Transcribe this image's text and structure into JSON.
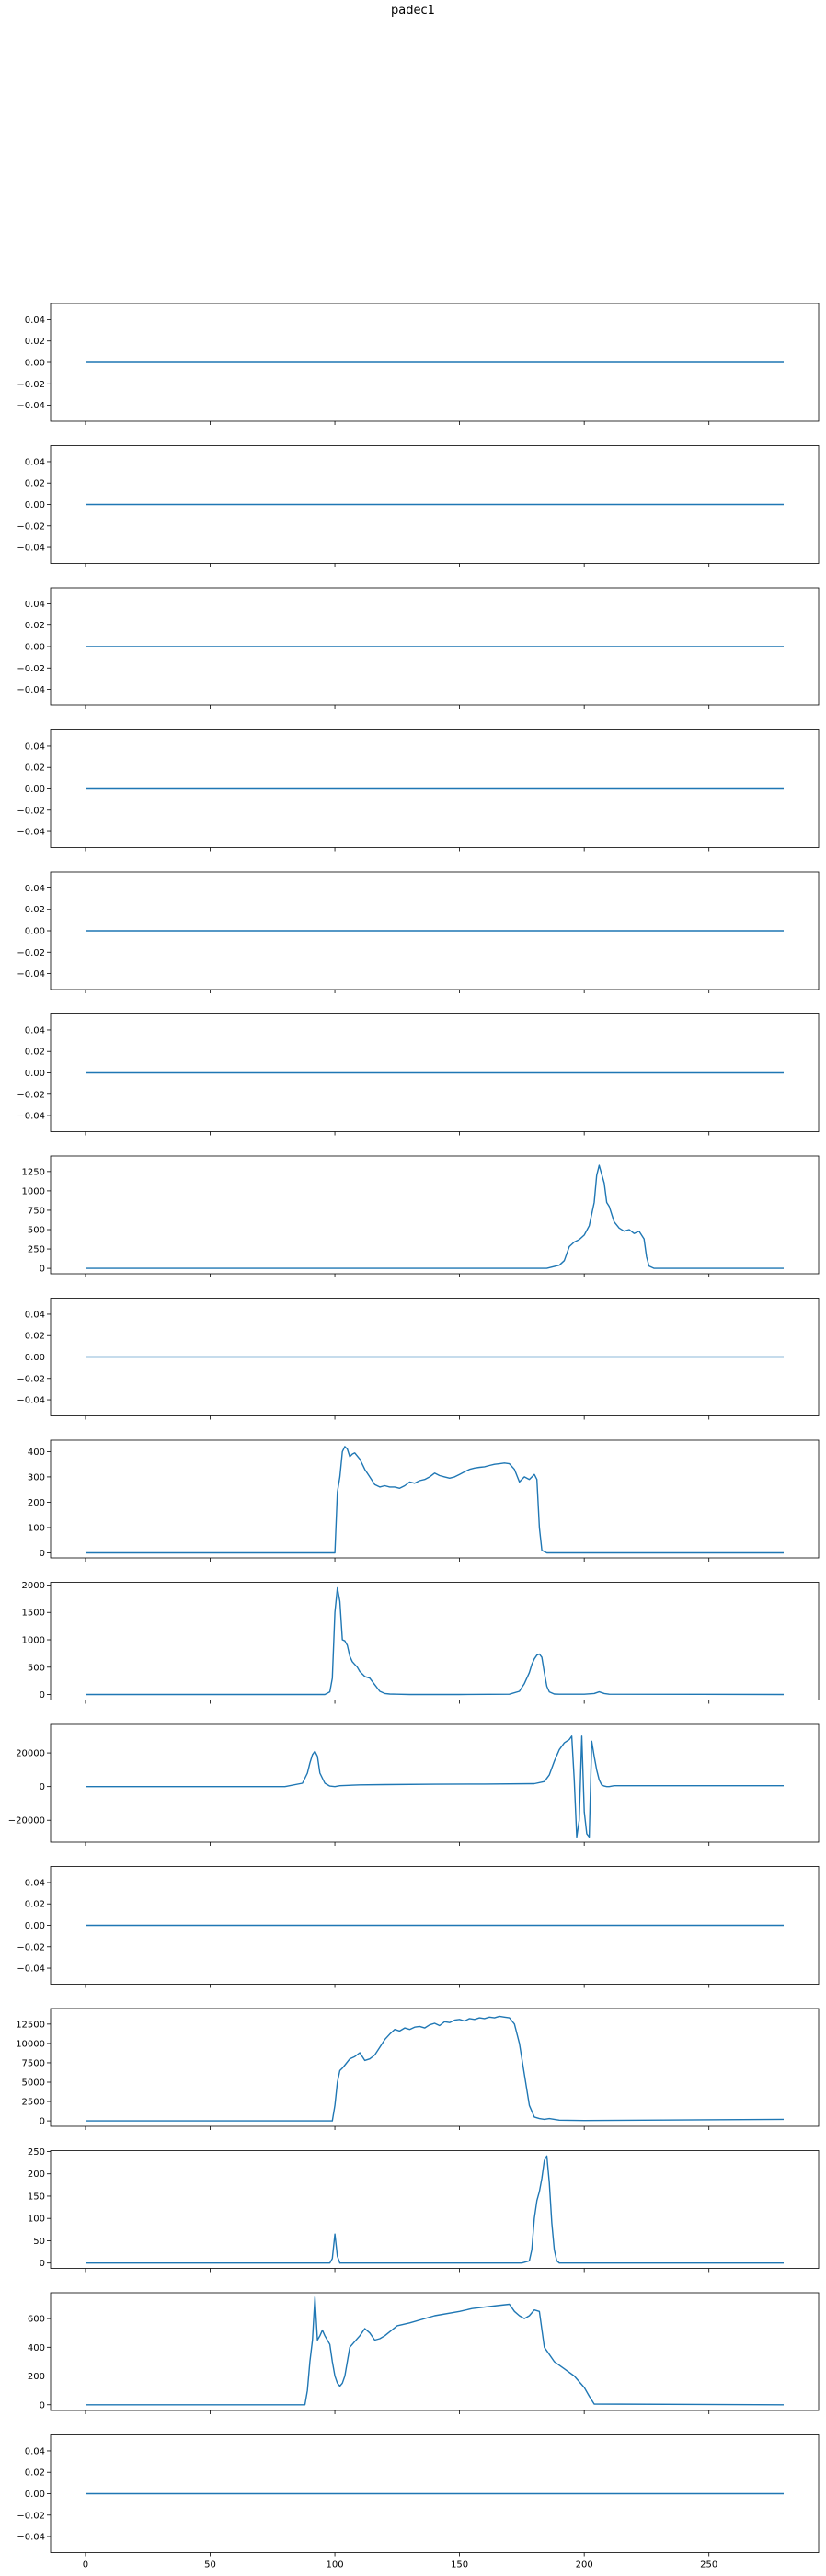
{
  "figure": {
    "title": "padec1"
  },
  "colors": {
    "line": "#1f77b4",
    "axes": "#000000",
    "background": "#ffffff"
  },
  "chart_data": [
    {
      "type": "line",
      "ylim": [
        -0.055,
        0.055
      ],
      "yticks": [
        0.04,
        0.02,
        0.0,
        -0.02,
        -0.04
      ],
      "ytick_labels": [
        "0.04",
        "0.02",
        "0.00",
        "−0.02",
        "−0.04"
      ],
      "x": [
        0,
        280
      ],
      "y": [
        0,
        0
      ]
    },
    {
      "type": "line",
      "ylim": [
        -0.055,
        0.055
      ],
      "yticks": [
        0.04,
        0.02,
        0.0,
        -0.02,
        -0.04
      ],
      "ytick_labels": [
        "0.04",
        "0.02",
        "0.00",
        "−0.02",
        "−0.04"
      ],
      "x": [
        0,
        280
      ],
      "y": [
        0,
        0
      ]
    },
    {
      "type": "line",
      "ylim": [
        -0.055,
        0.055
      ],
      "yticks": [
        0.04,
        0.02,
        0.0,
        -0.02,
        -0.04
      ],
      "ytick_labels": [
        "0.04",
        "0.02",
        "0.00",
        "−0.02",
        "−0.04"
      ],
      "x": [
        0,
        280
      ],
      "y": [
        0,
        0
      ]
    },
    {
      "type": "line",
      "ylim": [
        -0.055,
        0.055
      ],
      "yticks": [
        0.04,
        0.02,
        0.0,
        -0.02,
        -0.04
      ],
      "ytick_labels": [
        "0.04",
        "0.02",
        "0.00",
        "−0.02",
        "−0.04"
      ],
      "x": [
        0,
        280
      ],
      "y": [
        0,
        0
      ]
    },
    {
      "type": "line",
      "ylim": [
        -0.055,
        0.055
      ],
      "yticks": [
        0.04,
        0.02,
        0.0,
        -0.02,
        -0.04
      ],
      "ytick_labels": [
        "0.04",
        "0.02",
        "0.00",
        "−0.02",
        "−0.04"
      ],
      "x": [
        0,
        280
      ],
      "y": [
        0,
        0
      ]
    },
    {
      "type": "line",
      "ylim": [
        -0.055,
        0.055
      ],
      "yticks": [
        0.04,
        0.02,
        0.0,
        -0.02,
        -0.04
      ],
      "ytick_labels": [
        "0.04",
        "0.02",
        "0.00",
        "−0.02",
        "−0.04"
      ],
      "x": [
        0,
        280
      ],
      "y": [
        0,
        0
      ]
    },
    {
      "type": "line",
      "ylim": [
        -70,
        1450
      ],
      "yticks": [
        1250,
        1000,
        750,
        500,
        250,
        0
      ],
      "ytick_labels": [
        "1250",
        "1000",
        "750",
        "500",
        "250",
        "0"
      ],
      "x": [
        0,
        185,
        190,
        192,
        194,
        196,
        198,
        200,
        202,
        204,
        205,
        206,
        208,
        209,
        210,
        212,
        214,
        216,
        218,
        220,
        222,
        224,
        225,
        226,
        228,
        230,
        280
      ],
      "y": [
        0,
        0,
        40,
        100,
        280,
        340,
        370,
        430,
        550,
        850,
        1200,
        1330,
        1100,
        850,
        800,
        600,
        520,
        480,
        500,
        450,
        480,
        380,
        150,
        30,
        0,
        0,
        0
      ]
    },
    {
      "type": "line",
      "ylim": [
        -0.055,
        0.055
      ],
      "yticks": [
        0.04,
        0.02,
        0.0,
        -0.02,
        -0.04
      ],
      "ytick_labels": [
        "0.04",
        "0.02",
        "0.00",
        "−0.02",
        "−0.04"
      ],
      "x": [
        0,
        280
      ],
      "y": [
        0,
        0
      ]
    },
    {
      "type": "line",
      "ylim": [
        -20,
        445
      ],
      "yticks": [
        400,
        300,
        200,
        100,
        0
      ],
      "ytick_labels": [
        "400",
        "300",
        "200",
        "100",
        "0"
      ],
      "x": [
        0,
        100,
        101,
        102,
        103,
        104,
        105,
        106,
        107,
        108,
        110,
        112,
        114,
        116,
        118,
        120,
        122,
        124,
        126,
        128,
        130,
        132,
        134,
        136,
        138,
        140,
        142,
        144,
        146,
        148,
        150,
        152,
        154,
        156,
        158,
        160,
        162,
        164,
        166,
        168,
        170,
        172,
        174,
        176,
        178,
        180,
        181,
        182,
        183,
        185,
        280
      ],
      "y": [
        0,
        0,
        240,
        300,
        400,
        420,
        410,
        380,
        390,
        395,
        370,
        330,
        300,
        270,
        260,
        265,
        260,
        260,
        255,
        265,
        280,
        275,
        285,
        290,
        300,
        315,
        305,
        300,
        295,
        300,
        310,
        320,
        330,
        335,
        338,
        340,
        345,
        350,
        352,
        355,
        352,
        330,
        280,
        300,
        290,
        310,
        290,
        100,
        10,
        0,
        0
      ]
    },
    {
      "type": "line",
      "ylim": [
        -100,
        2050
      ],
      "yticks": [
        2000,
        1500,
        1000,
        500,
        0
      ],
      "ytick_labels": [
        "2000",
        "1500",
        "1000",
        "500",
        "0"
      ],
      "x": [
        0,
        96,
        98,
        99,
        100,
        101,
        102,
        103,
        104,
        105,
        106,
        107,
        108,
        109,
        110,
        112,
        114,
        116,
        118,
        120,
        122,
        125,
        130,
        150,
        170,
        174,
        176,
        178,
        179,
        180,
        181,
        182,
        183,
        184,
        185,
        186,
        188,
        190,
        200,
        204,
        206,
        208,
        210,
        280
      ],
      "y": [
        0,
        0,
        50,
        300,
        1500,
        1950,
        1700,
        1000,
        980,
        900,
        700,
        600,
        550,
        500,
        420,
        330,
        300,
        180,
        60,
        20,
        10,
        5,
        0,
        0,
        5,
        60,
        200,
        400,
        550,
        650,
        720,
        740,
        680,
        400,
        150,
        50,
        10,
        5,
        5,
        20,
        50,
        20,
        5,
        0
      ]
    },
    {
      "type": "line",
      "ylim": [
        -33000,
        37000
      ],
      "yticks": [
        20000,
        0,
        -20000
      ],
      "ytick_labels": [
        "20000",
        "0",
        "−20000"
      ],
      "x": [
        0,
        80,
        87,
        89,
        90,
        91,
        92,
        93,
        94,
        96,
        98,
        100,
        102,
        110,
        120,
        140,
        160,
        180,
        184,
        186,
        188,
        190,
        192,
        194,
        195,
        196,
        197,
        198,
        199,
        200,
        201,
        202,
        203,
        204,
        205,
        206,
        207,
        208,
        209,
        210,
        212,
        280
      ],
      "y": [
        0,
        0,
        2000,
        8000,
        14000,
        19000,
        21000,
        18000,
        8000,
        2000,
        300,
        0,
        500,
        1000,
        1200,
        1400,
        1500,
        1700,
        3000,
        7000,
        15000,
        22000,
        26000,
        28000,
        30000,
        4000,
        -30000,
        -20000,
        30000,
        -15000,
        -28000,
        -30000,
        27000,
        18000,
        10000,
        4000,
        1000,
        300,
        0,
        0,
        500,
        500
      ]
    },
    {
      "type": "line",
      "ylim": [
        -0.055,
        0.055
      ],
      "yticks": [
        0.04,
        0.02,
        0.0,
        -0.02,
        -0.04
      ],
      "ytick_labels": [
        "0.04",
        "0.02",
        "0.00",
        "−0.02",
        "−0.04"
      ],
      "x": [
        0,
        280
      ],
      "y": [
        0,
        0
      ]
    },
    {
      "type": "line",
      "ylim": [
        -700,
        14500
      ],
      "yticks": [
        12500,
        10000,
        7500,
        5000,
        2500,
        0
      ],
      "ytick_labels": [
        "12500",
        "10000",
        "7500",
        "5000",
        "2500",
        "0"
      ],
      "x": [
        0,
        99,
        100,
        101,
        102,
        103,
        104,
        106,
        108,
        110,
        112,
        114,
        116,
        118,
        120,
        122,
        124,
        126,
        128,
        130,
        132,
        134,
        136,
        138,
        140,
        142,
        144,
        146,
        148,
        150,
        152,
        154,
        156,
        158,
        160,
        162,
        164,
        166,
        168,
        170,
        172,
        174,
        176,
        178,
        180,
        182,
        184,
        186,
        190,
        200,
        280
      ],
      "y": [
        0,
        0,
        2000,
        5000,
        6500,
        6800,
        7200,
        8000,
        8300,
        8800,
        7800,
        8000,
        8500,
        9500,
        10500,
        11200,
        11800,
        11600,
        12000,
        11800,
        12100,
        12200,
        12000,
        12400,
        12600,
        12300,
        12800,
        12700,
        13000,
        13100,
        12900,
        13200,
        13100,
        13300,
        13200,
        13400,
        13300,
        13500,
        13400,
        13300,
        12500,
        10000,
        6000,
        2000,
        500,
        300,
        200,
        300,
        100,
        50,
        200
      ]
    },
    {
      "type": "line",
      "ylim": [
        -12,
        252
      ],
      "yticks": [
        250,
        200,
        150,
        100,
        50,
        0
      ],
      "ytick_labels": [
        "250",
        "200",
        "150",
        "100",
        "50",
        "0"
      ],
      "x": [
        0,
        98,
        99,
        100,
        101,
        102,
        175,
        178,
        179,
        180,
        181,
        182,
        183,
        184,
        185,
        186,
        187,
        188,
        189,
        190,
        280
      ],
      "y": [
        0,
        0,
        10,
        65,
        15,
        0,
        0,
        5,
        30,
        100,
        140,
        160,
        190,
        230,
        240,
        180,
        90,
        30,
        5,
        0,
        0
      ]
    },
    {
      "type": "line",
      "ylim": [
        -40,
        780
      ],
      "yticks": [
        600,
        400,
        200,
        0
      ],
      "ytick_labels": [
        "600",
        "400",
        "200",
        "0"
      ],
      "x": [
        0,
        88,
        89,
        90,
        91,
        92,
        93,
        94,
        95,
        96,
        97,
        98,
        99,
        100,
        101,
        102,
        103,
        104,
        105,
        106,
        108,
        110,
        112,
        114,
        116,
        118,
        120,
        125,
        130,
        140,
        150,
        155,
        160,
        165,
        170,
        172,
        174,
        176,
        178,
        180,
        182,
        184,
        188,
        192,
        196,
        200,
        202,
        204,
        280
      ],
      "y": [
        0,
        0,
        100,
        300,
        450,
        750,
        450,
        480,
        520,
        480,
        450,
        420,
        300,
        200,
        150,
        130,
        150,
        200,
        300,
        400,
        440,
        480,
        530,
        500,
        450,
        460,
        480,
        550,
        570,
        620,
        650,
        670,
        680,
        690,
        700,
        650,
        620,
        600,
        620,
        660,
        650,
        400,
        300,
        250,
        200,
        120,
        60,
        5,
        0
      ]
    },
    {
      "type": "line",
      "ylim": [
        -0.055,
        0.055
      ],
      "yticks": [
        0.04,
        0.02,
        0.0,
        -0.02,
        -0.04
      ],
      "ytick_labels": [
        "0.04",
        "0.02",
        "0.00",
        "−0.02",
        "−0.04"
      ],
      "x": [
        0,
        280
      ],
      "y": [
        0,
        0
      ]
    }
  ],
  "shared_x": {
    "xlim": [
      -14,
      294
    ],
    "xticks": [
      0,
      50,
      100,
      150,
      200,
      250
    ],
    "xtick_labels": [
      "0",
      "50",
      "100",
      "150",
      "200",
      "250"
    ]
  }
}
